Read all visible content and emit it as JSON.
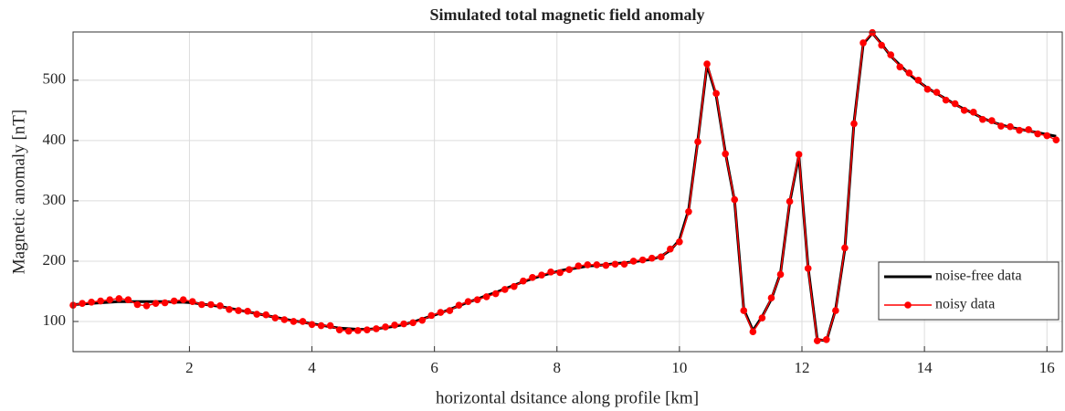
{
  "chart_data": {
    "type": "line",
    "title": "Simulated total magnetic field anomaly",
    "x_label": "horizontal dsitance along profile [km]",
    "y_label": "Magnetic anomaly [nT]",
    "xlim": [
      0.1,
      16.25
    ],
    "ylim": [
      50,
      580
    ],
    "xticks": [
      2,
      4,
      6,
      8,
      10,
      12,
      14,
      16
    ],
    "yticks": [
      100,
      200,
      300,
      400,
      500
    ],
    "grid": true,
    "legend": "east",
    "x": [
      0.1,
      0.25,
      0.4,
      0.55,
      0.7,
      0.85,
      1.0,
      1.15,
      1.3,
      1.45,
      1.6,
      1.75,
      1.9,
      2.05,
      2.2,
      2.35,
      2.5,
      2.65,
      2.8,
      2.95,
      3.1,
      3.25,
      3.4,
      3.55,
      3.7,
      3.85,
      4.0,
      4.15,
      4.3,
      4.45,
      4.6,
      4.75,
      4.9,
      5.05,
      5.2,
      5.35,
      5.5,
      5.65,
      5.8,
      5.95,
      6.1,
      6.25,
      6.4,
      6.55,
      6.7,
      6.85,
      7.0,
      7.15,
      7.3,
      7.45,
      7.6,
      7.75,
      7.9,
      8.05,
      8.2,
      8.35,
      8.5,
      8.65,
      8.8,
      8.95,
      9.1,
      9.25,
      9.4,
      9.55,
      9.7,
      9.85,
      10.0,
      10.15,
      10.3,
      10.45,
      10.6,
      10.75,
      10.9,
      11.05,
      11.2,
      11.35,
      11.5,
      11.65,
      11.8,
      11.95,
      12.1,
      12.25,
      12.4,
      12.55,
      12.7,
      12.85,
      13.0,
      13.15,
      13.3,
      13.45,
      13.6,
      13.75,
      13.9,
      14.05,
      14.2,
      14.35,
      14.5,
      14.65,
      14.8,
      14.95,
      15.1,
      15.25,
      15.4,
      15.55,
      15.7,
      15.85,
      16.0,
      16.15
    ],
    "series": [
      {
        "name": "noise-free data",
        "color": "#000000",
        "values": [
          128,
          129,
          130,
          131,
          132,
          133,
          133,
          133,
          133,
          133,
          133,
          132,
          132,
          131,
          129,
          127,
          125,
          122,
          119,
          116,
          113,
          110,
          107,
          104,
          101,
          99,
          96,
          94,
          91,
          89,
          88,
          87,
          87,
          88,
          90,
          92,
          95,
          99,
          104,
          109,
          114,
          120,
          126,
          132,
          137,
          143,
          148,
          154,
          160,
          166,
          171,
          176,
          180,
          184,
          187,
          189,
          192,
          193,
          194,
          196,
          197,
          199,
          201,
          203,
          208,
          218,
          235,
          285,
          400,
          525,
          475,
          380,
          300,
          120,
          85,
          108,
          137,
          180,
          297,
          375,
          190,
          70,
          68,
          120,
          220,
          430,
          560,
          578,
          560,
          540,
          525,
          510,
          498,
          487,
          478,
          469,
          460,
          452,
          445,
          437,
          431,
          426,
          422,
          419,
          416,
          413,
          410,
          407
        ]
      },
      {
        "name": "noisy data",
        "color": "#ff0000",
        "values": [
          127,
          130,
          132,
          134,
          136,
          138,
          136,
          128,
          126,
          130,
          131,
          134,
          136,
          133,
          128,
          128,
          126,
          120,
          118,
          117,
          112,
          111,
          106,
          103,
          100,
          100,
          95,
          93,
          93,
          86,
          84,
          85,
          86,
          88,
          91,
          94,
          96,
          98,
          102,
          110,
          115,
          118,
          127,
          133,
          136,
          141,
          146,
          153,
          158,
          167,
          173,
          177,
          182,
          181,
          186,
          192,
          194,
          194,
          193,
          195,
          195,
          200,
          202,
          205,
          207,
          220,
          232,
          282,
          398,
          527,
          478,
          378,
          302,
          118,
          83,
          106,
          139,
          178,
          299,
          377,
          188,
          68,
          70,
          118,
          222,
          428,
          562,
          579,
          558,
          542,
          522,
          512,
          500,
          485,
          480,
          467,
          461,
          450,
          447,
          435,
          433,
          424,
          423,
          417,
          418,
          411,
          408,
          401
        ]
      }
    ]
  }
}
